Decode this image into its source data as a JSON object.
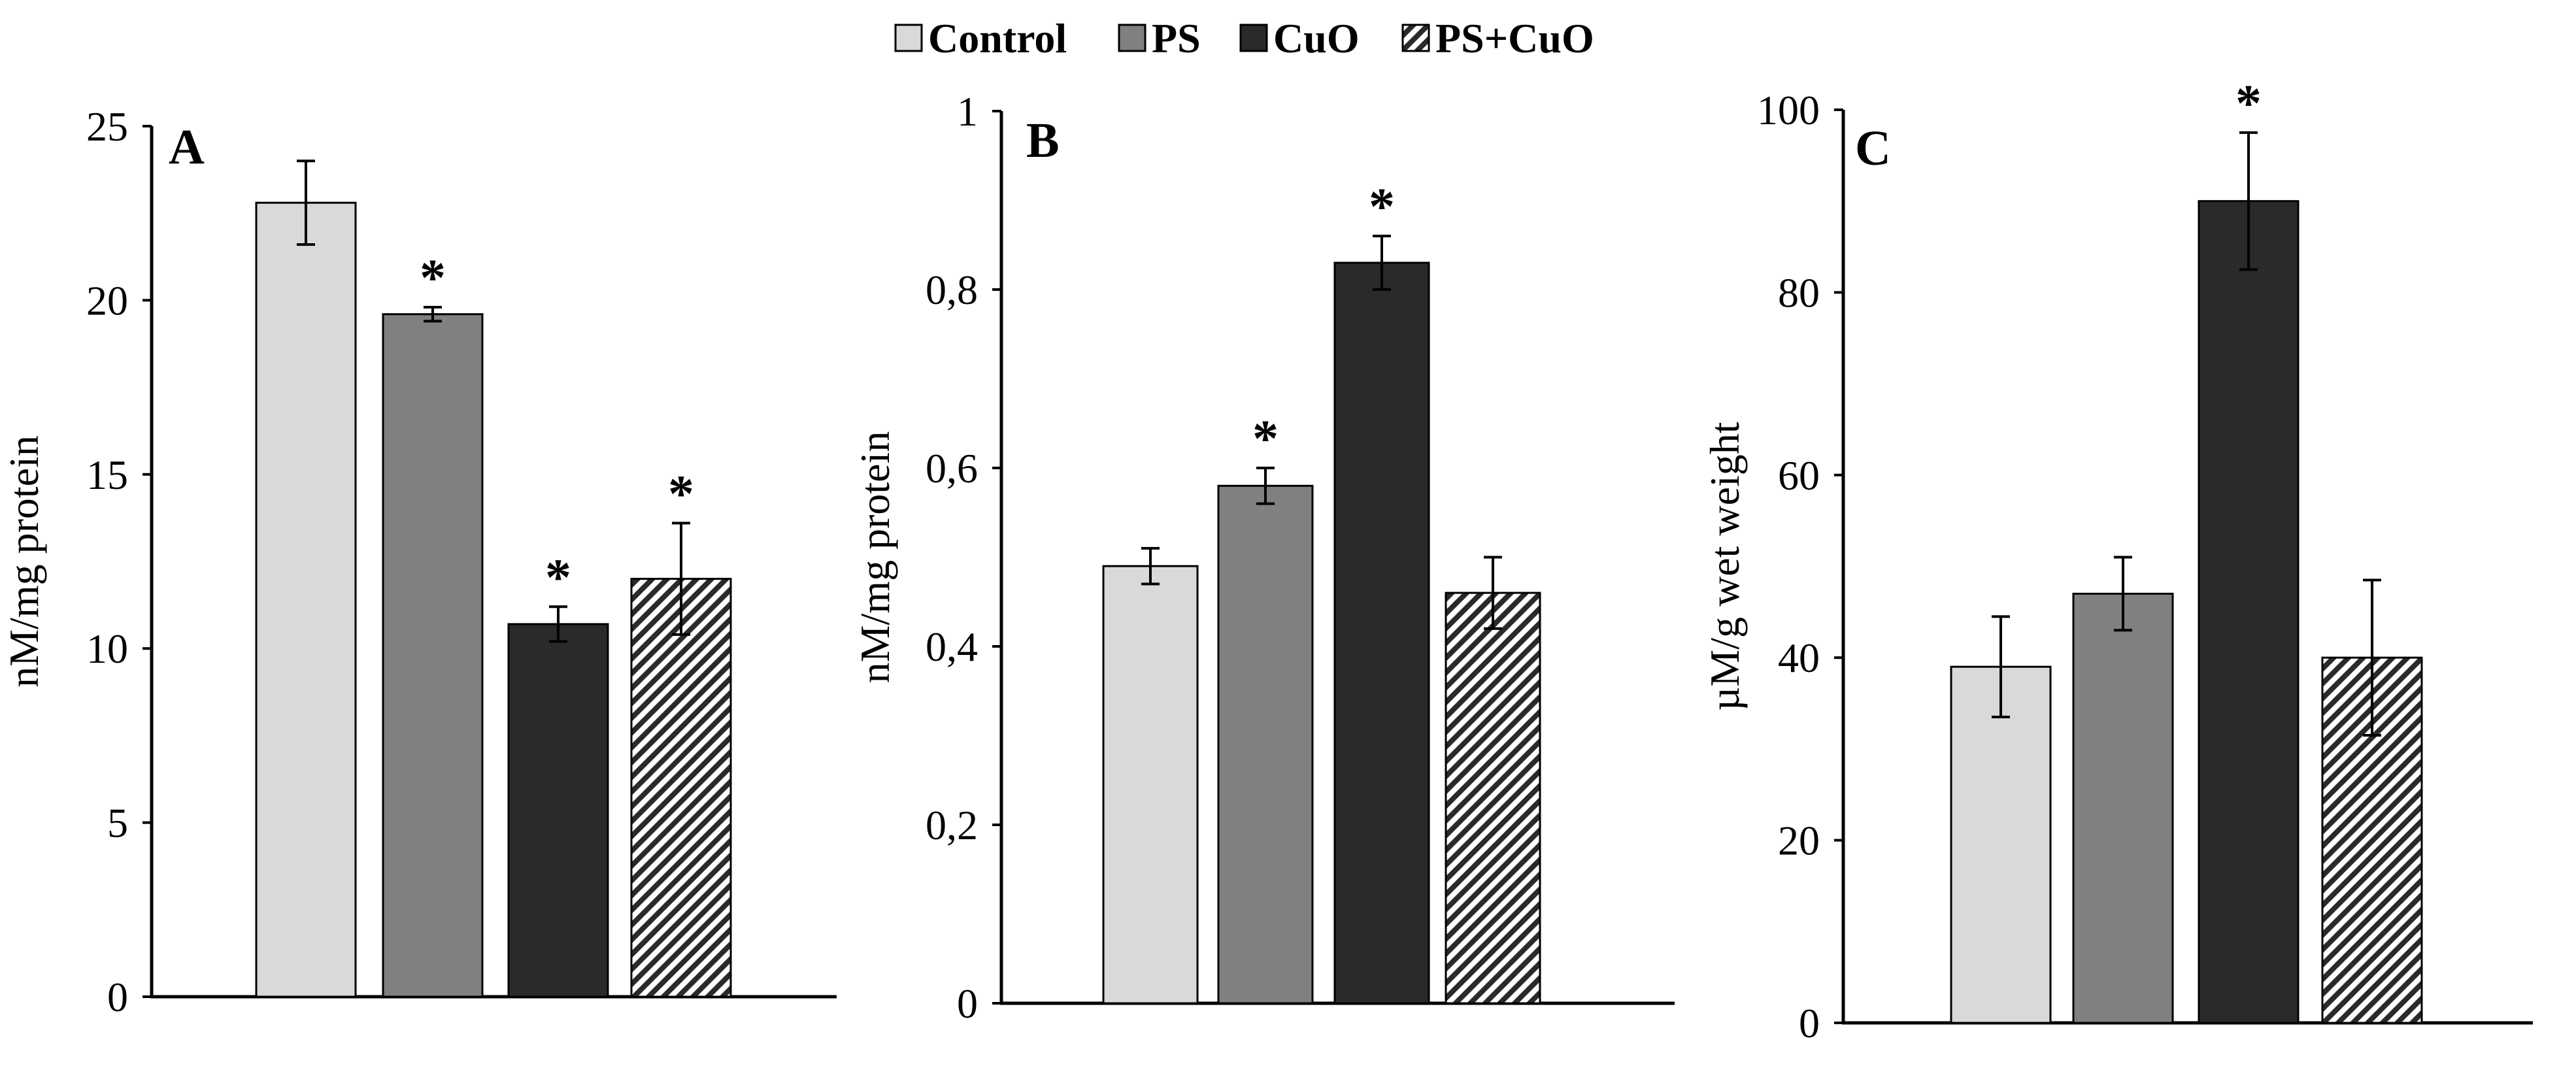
{
  "legend": {
    "items": [
      {
        "label": "Control",
        "color": "#d9d9d9",
        "pattern": "solid"
      },
      {
        "label": "PS",
        "color": "#808080",
        "pattern": "solid"
      },
      {
        "label": "CuO",
        "color": "#2a2a2a",
        "pattern": "solid"
      },
      {
        "label": "PS+CuO",
        "color": "#ffffff",
        "pattern": "diagonal-hatch"
      }
    ]
  },
  "chart_data": [
    {
      "type": "bar",
      "panel_label": "A",
      "ylabel": "nM/mg protein",
      "categories": [
        "Control",
        "PS",
        "CuO",
        "PS+CuO"
      ],
      "values": [
        22.8,
        19.6,
        10.7,
        12.0
      ],
      "errors": [
        1.2,
        0.2,
        0.5,
        1.6
      ],
      "significant": [
        false,
        true,
        true,
        true
      ],
      "significance_marker": "*",
      "ylim": [
        0,
        25
      ],
      "yticks": [
        0,
        5,
        10,
        15,
        20,
        25
      ],
      "ytick_labels": [
        "0",
        "5",
        "10",
        "15",
        "20",
        "25"
      ]
    },
    {
      "type": "bar",
      "panel_label": "B",
      "ylabel": "nM/mg protein",
      "categories": [
        "Control",
        "PS",
        "CuO",
        "PS+CuO"
      ],
      "values": [
        0.49,
        0.58,
        0.83,
        0.46
      ],
      "errors": [
        0.02,
        0.02,
        0.03,
        0.04
      ],
      "significant": [
        false,
        true,
        true,
        false
      ],
      "significance_marker": "*",
      "ylim": [
        0,
        1
      ],
      "yticks": [
        0,
        0.2,
        0.4,
        0.6,
        0.8,
        1
      ],
      "ytick_labels": [
        "0",
        "0,2",
        "0,4",
        "0,6",
        "0,8",
        "1"
      ]
    },
    {
      "type": "bar",
      "panel_label": "C",
      "ylabel": "µM/g wet weight",
      "categories": [
        "Control",
        "PS",
        "CuO",
        "PS+CuO"
      ],
      "values": [
        39,
        47,
        90,
        40
      ],
      "errors": [
        5.5,
        4,
        7.5,
        8.5
      ],
      "significant": [
        false,
        false,
        true,
        false
      ],
      "significance_marker": "*",
      "ylim": [
        0,
        100
      ],
      "yticks": [
        0,
        20,
        40,
        60,
        80,
        100
      ],
      "ytick_labels": [
        "0",
        "20",
        "40",
        "60",
        "80",
        "100"
      ]
    }
  ]
}
